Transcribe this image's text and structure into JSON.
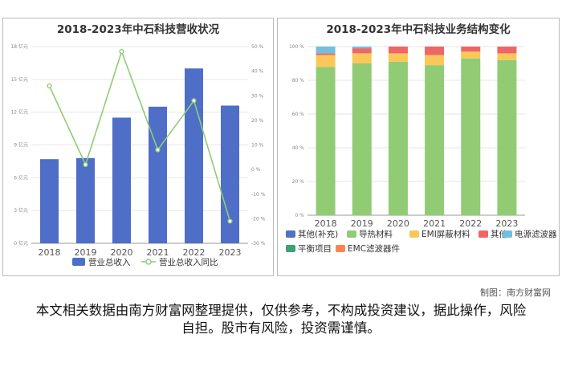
{
  "credit": "制图：南方财富网",
  "disclaimer": "本文相关数据由南方财富网整理提供，仅供参考，不构成投资建议，据此操作，风险自担。股市有风险，投资需谨慎。",
  "chart_data": [
    {
      "type": "bar+line",
      "title": "2018-2023年中石科技营收状况",
      "categories": [
        "2018",
        "2019",
        "2020",
        "2021",
        "2022",
        "2023"
      ],
      "y_ticks": [
        "0 亿元",
        "3 亿元",
        "6 亿元",
        "9 亿元",
        "12 亿元",
        "15 亿元",
        "18 亿元"
      ],
      "y2_ticks": [
        "-30 %",
        "-20 %",
        "-10 %",
        "0 %",
        "10 %",
        "20 %",
        "30 %",
        "40 %",
        "50 %"
      ],
      "ylim": [
        0,
        18
      ],
      "y2lim": [
        -30,
        50
      ],
      "series": [
        {
          "name": "营业总收入",
          "type": "bar",
          "axis": "left",
          "color": "#4e6ec8",
          "values": [
            7.7,
            7.8,
            11.5,
            12.5,
            16.0,
            12.6
          ]
        },
        {
          "name": "营业总收入同比",
          "type": "line",
          "axis": "right",
          "color": "#91cc75",
          "values": [
            34,
            2,
            48,
            8,
            28,
            -21
          ]
        }
      ],
      "legend_position": "bottom"
    },
    {
      "type": "stacked-bar",
      "title": "2018-2023年中石科技业务结构变化",
      "categories": [
        "2018",
        "2019",
        "2020",
        "2021",
        "2022",
        "2023"
      ],
      "y_ticks": [
        "0 %",
        "20 %",
        "40 %",
        "60 %",
        "80 %",
        "100 %"
      ],
      "ylim": [
        0,
        100
      ],
      "series": [
        {
          "name": "其他(补充)",
          "color": "#5470c6",
          "values": [
            0,
            0,
            0,
            0,
            0,
            0
          ]
        },
        {
          "name": "导热材料",
          "color": "#91cc75",
          "values": [
            88,
            90,
            91,
            89,
            93,
            92
          ]
        },
        {
          "name": "EMI屏蔽材料",
          "color": "#fac858",
          "values": [
            7,
            6,
            5,
            6,
            4,
            4
          ]
        },
        {
          "name": "其他",
          "color": "#ee6666",
          "values": [
            1,
            3,
            4,
            5,
            3,
            4
          ]
        },
        {
          "name": "电源滤波器",
          "color": "#73c0de",
          "values": [
            4,
            1,
            0,
            0,
            0,
            0
          ]
        },
        {
          "name": "平衡项目",
          "color": "#3ba272",
          "values": [
            0,
            0,
            0,
            0,
            0,
            0
          ]
        },
        {
          "name": "EMC滤波器件",
          "color": "#fc8452",
          "values": [
            0,
            0,
            0,
            0,
            0,
            0
          ]
        }
      ],
      "legend_position": "bottom"
    }
  ]
}
